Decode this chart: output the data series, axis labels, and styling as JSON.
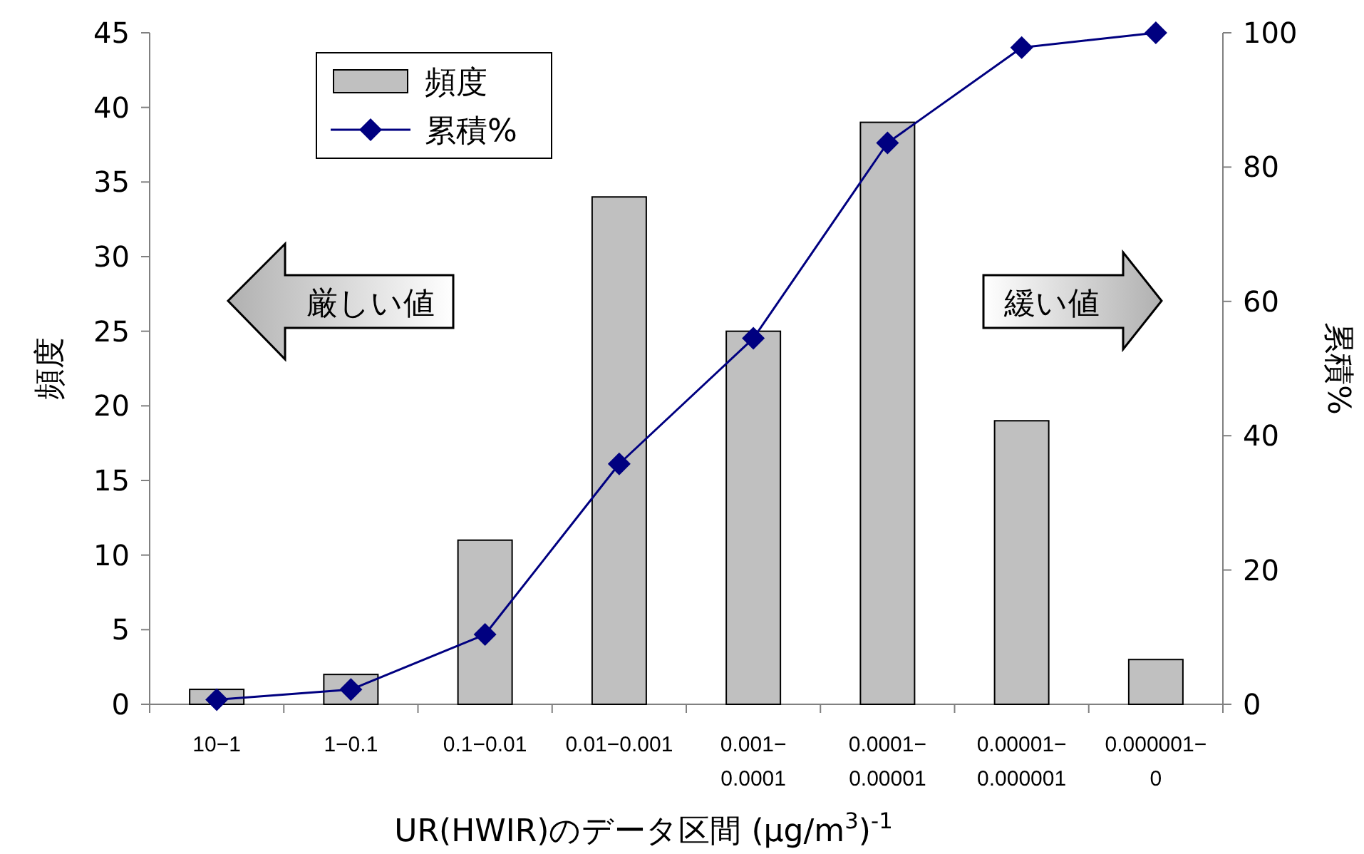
{
  "chart_data": {
    "type": "bar",
    "xlabel": "UR(HWIR)のデータ区間 (μg/m$^{3}$)$^{-1}$",
    "ylabel": "頻度",
    "y2label": "累積%",
    "categories": [
      "10−1",
      "1−0.1",
      "0.1−0.01",
      "0.01−0.001",
      "0.001−0.0001",
      "0.0001−0.00001",
      "0.00001−0.000001",
      "0.000001−0"
    ],
    "series": [
      {
        "name": "頻度",
        "color": "#c0c0c0",
        "values": [
          1,
          2,
          11,
          34,
          25,
          39,
          19,
          3
        ]
      },
      {
        "name": "累積%",
        "type": "line",
        "axis": "y2",
        "color": "#000080",
        "marker": "diamond",
        "values": [
          0.7,
          2.2,
          10.4,
          35.8,
          54.5,
          83.6,
          97.8,
          100
        ]
      }
    ],
    "ylim": [
      0,
      45
    ],
    "yticks": [
      0,
      5,
      10,
      15,
      20,
      25,
      30,
      35,
      40,
      45
    ],
    "y2lim": [
      0,
      100
    ],
    "y2ticks": [
      0,
      20,
      40,
      60,
      80,
      100
    ],
    "legend": "top left",
    "grid": false,
    "annotations": [
      "厳しい値",
      "緩い値"
    ]
  }
}
